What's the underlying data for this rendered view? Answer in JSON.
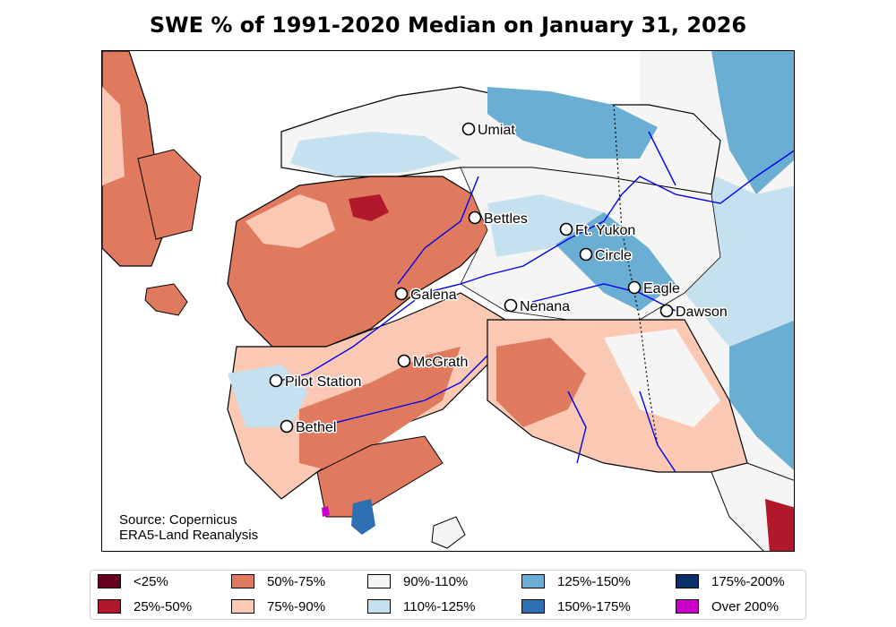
{
  "title": "SWE % of 1991-2020 Median on January 31, 2026",
  "source_lines": [
    "Source: Copernicus",
    "ERA5-Land Reanalysis"
  ],
  "cities": [
    {
      "name": "Umiat",
      "lon": -152.1,
      "lat": 69.4
    },
    {
      "name": "Bettles",
      "lon": -151.5,
      "lat": 66.9
    },
    {
      "name": "Ft. Yukon",
      "lon": -145.3,
      "lat": 66.6
    },
    {
      "name": "Circle",
      "lon": -144.1,
      "lat": 65.8
    },
    {
      "name": "Eagle",
      "lon": -141.2,
      "lat": 64.8
    },
    {
      "name": "Dawson",
      "lon": -139.4,
      "lat": 64.1
    },
    {
      "name": "Galena",
      "lon": -156.9,
      "lat": 64.7
    },
    {
      "name": "Nenana",
      "lon": -149.1,
      "lat": 64.6
    },
    {
      "name": "McGrath",
      "lon": -155.6,
      "lat": 62.9
    },
    {
      "name": "Pilot Station",
      "lon": -162.9,
      "lat": 61.9
    },
    {
      "name": "Bethel",
      "lon": -161.8,
      "lat": 60.8
    }
  ],
  "legend": [
    {
      "label": "<25%",
      "color": "#67001f"
    },
    {
      "label": "25%-50%",
      "color": "#b2182b"
    },
    {
      "label": "50%-75%",
      "color": "#e07a5f"
    },
    {
      "label": "75%-90%",
      "color": "#fbc9b3"
    },
    {
      "label": "90%-110%",
      "color": "#f5f5f5"
    },
    {
      "label": "110%-125%",
      "color": "#c5e0ee"
    },
    {
      "label": "125%-150%",
      "color": "#6aaed3"
    },
    {
      "label": "150%-175%",
      "color": "#2e6fb2"
    },
    {
      "label": "175%-200%",
      "color": "#0b2f68"
    },
    {
      "label": "Over 200%",
      "color": "#cc00cc"
    }
  ]
}
